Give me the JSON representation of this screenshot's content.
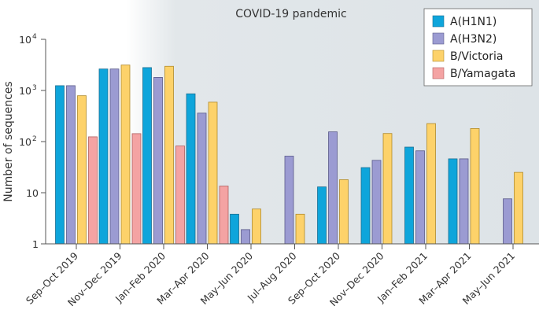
{
  "chart_data": {
    "type": "bar",
    "title": "",
    "xlabel": "",
    "ylabel": "Number of sequences",
    "yscale": "log",
    "ylim": [
      1,
      10000
    ],
    "yticks": [
      {
        "value": 1,
        "label": "1",
        "sup": ""
      },
      {
        "value": 10,
        "label": "10",
        "sup": ""
      },
      {
        "value": 100,
        "label": "10",
        "sup": "2"
      },
      {
        "value": 1000,
        "label": "10",
        "sup": "3"
      },
      {
        "value": 10000,
        "label": "10",
        "sup": "4"
      }
    ],
    "grid": false,
    "legend_position": "top-right",
    "annotation": {
      "text": "COVID-19 pandemic",
      "shaded_from_category_index": 2
    },
    "categories": [
      "Sep–Oct 2019",
      "Nov–Dec 2019",
      "Jan–Feb 2020",
      "Mar–Apr 2020",
      "May–Jun 2020",
      "Jul–Aug 2020",
      "Sep–Oct 2020",
      "Nov–Dec 2020",
      "Jan–Feb 2021",
      "Mar–Apr 2021",
      "May–Jun 2021"
    ],
    "series": [
      {
        "name": "A(H1N1)",
        "color": "#0ea5db",
        "border": "#1b6f92",
        "values": [
          1240,
          2630,
          2800,
          860,
          3.8,
          null,
          13,
          31,
          78,
          46,
          null
        ]
      },
      {
        "name": "A(H3N2)",
        "color": "#9b9bd2",
        "border": "#5a5a8a",
        "values": [
          1240,
          2630,
          1800,
          360,
          1.9,
          52,
          155,
          43,
          66,
          46,
          7.6
        ]
      },
      {
        "name": "B/Victoria",
        "color": "#fdd26a",
        "border": "#b08a2a",
        "values": [
          790,
          3140,
          2970,
          590,
          4.8,
          3.8,
          18,
          144,
          225,
          180,
          25
        ]
      },
      {
        "name": "B/Yamagata",
        "color": "#f4a3a3",
        "border": "#b06060",
        "values": [
          124,
          143,
          82,
          13.5,
          null,
          null,
          null,
          null,
          null,
          null,
          null
        ]
      }
    ]
  }
}
